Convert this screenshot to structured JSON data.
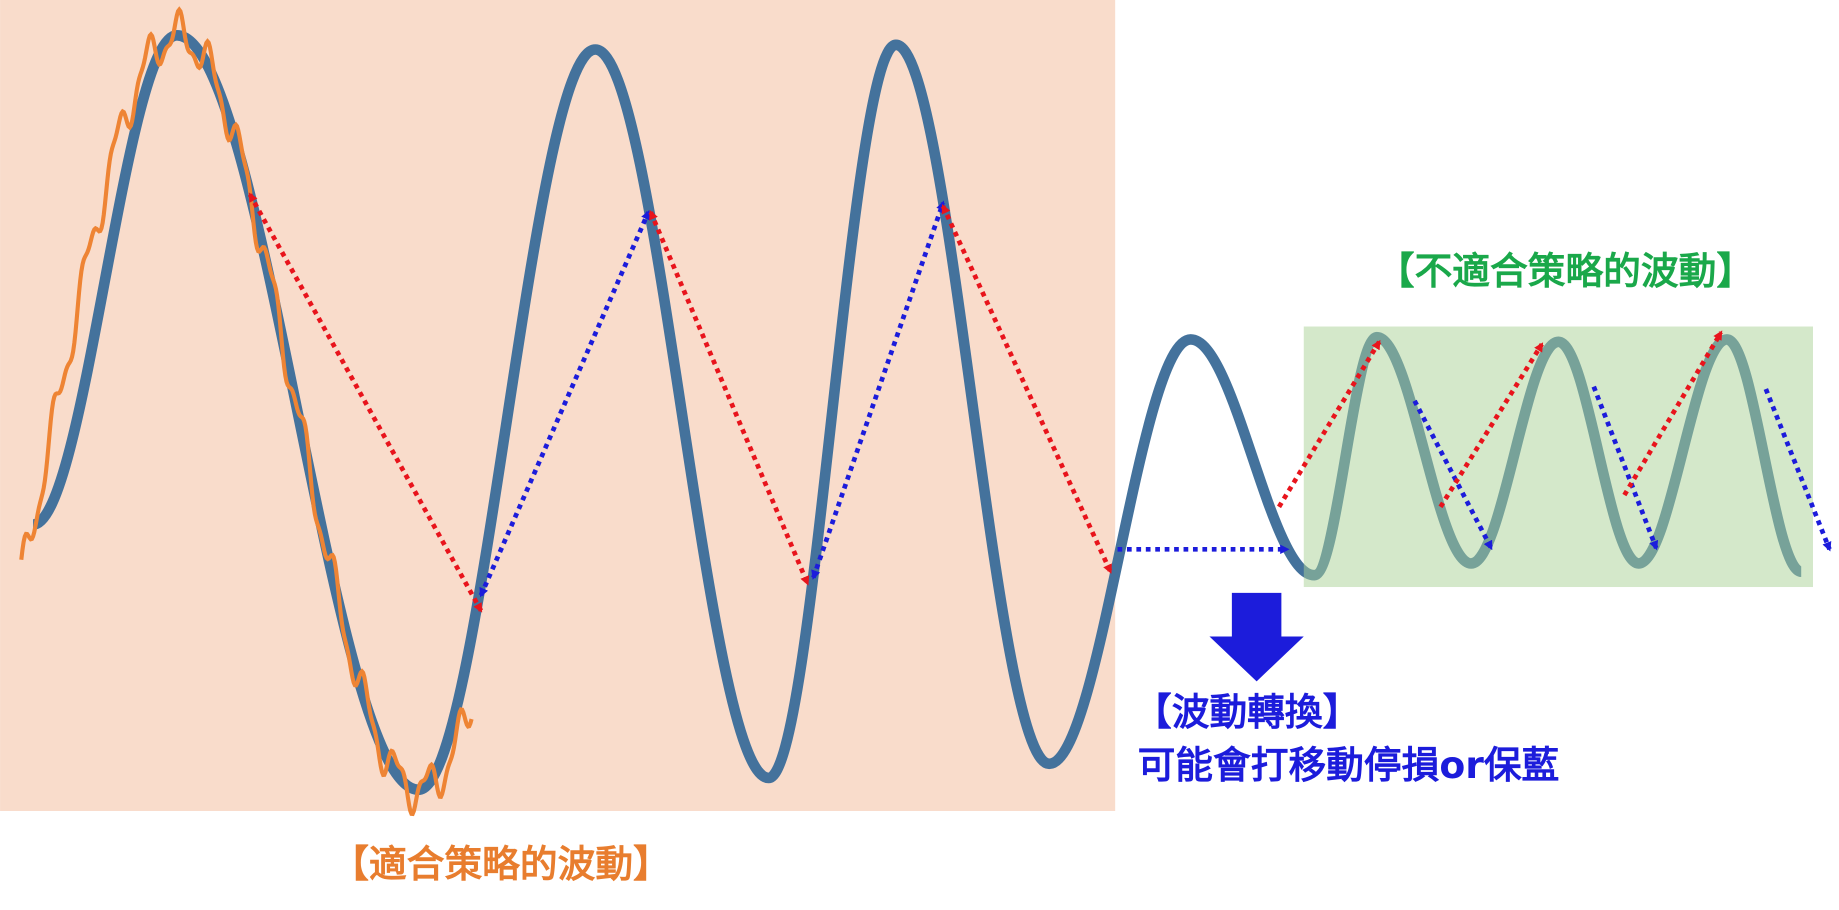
{
  "labels": {
    "suitable": "【適合策略的波動】",
    "unsuitable": "【不適合策略的波動】",
    "transition_title": "【波動轉換】",
    "transition_note": "可能會打移動停損or保藍"
  }
}
